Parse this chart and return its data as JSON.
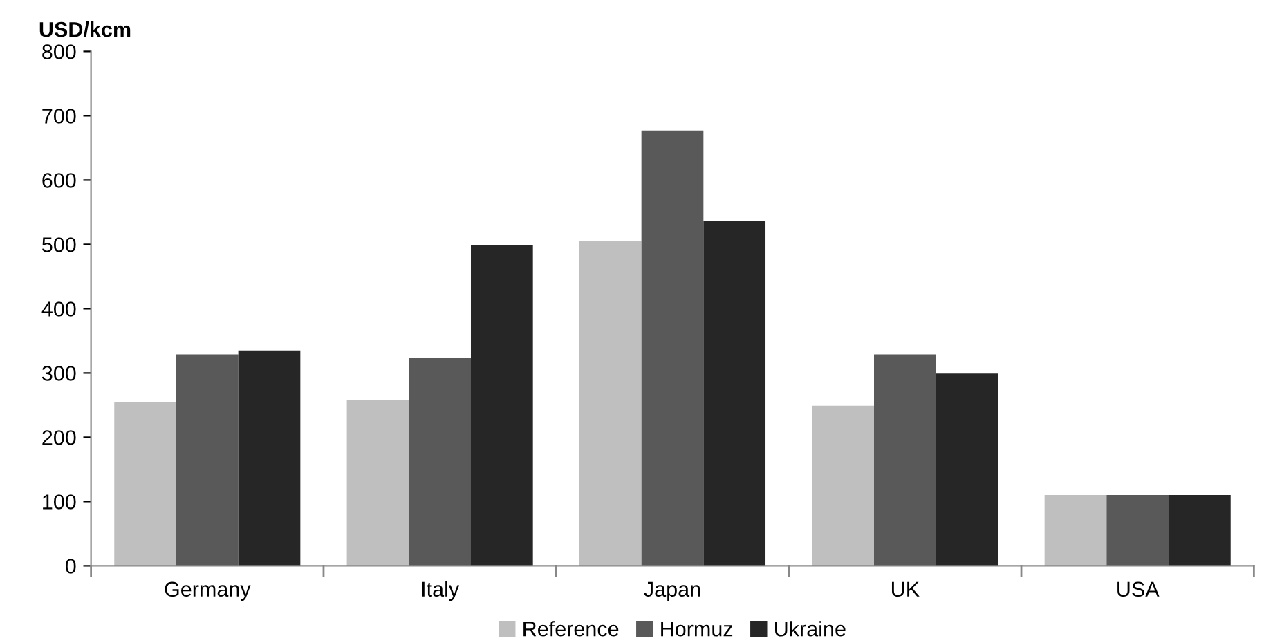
{
  "chart_data": {
    "type": "bar",
    "ylabel": "USD/kcm",
    "categories": [
      "Germany",
      "Italy",
      "Japan",
      "UK",
      "USA"
    ],
    "series": [
      {
        "name": "Reference",
        "color": "#bfbfbf",
        "values": [
          255,
          258,
          505,
          249,
          110
        ]
      },
      {
        "name": "Hormuz",
        "color": "#595959",
        "values": [
          329,
          323,
          677,
          329,
          110
        ]
      },
      {
        "name": "Ukraine",
        "color": "#262626",
        "values": [
          335,
          499,
          537,
          299,
          110
        ]
      }
    ],
    "ylim": [
      0,
      800
    ],
    "yticks": [
      0,
      100,
      200,
      300,
      400,
      500,
      600,
      700,
      800
    ],
    "grid": false,
    "legend": "bottom"
  }
}
